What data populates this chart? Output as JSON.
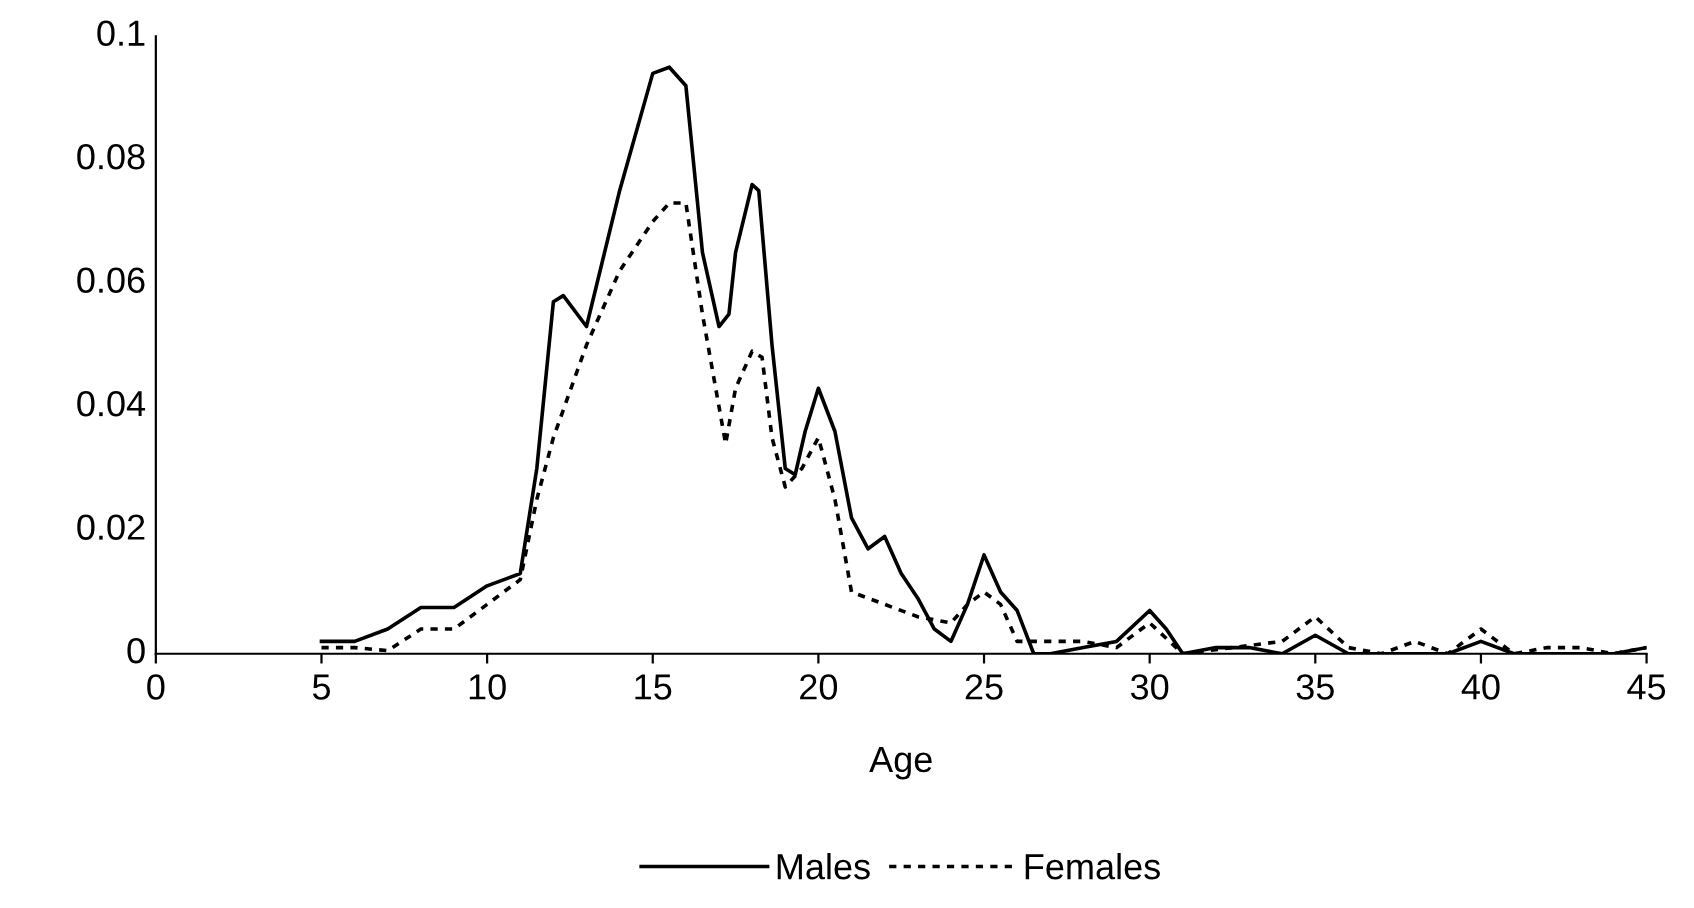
{
  "chart_data": {
    "type": "line",
    "xlabel": "Age",
    "xlim": [
      0,
      45
    ],
    "xticks": [
      0,
      5,
      10,
      15,
      20,
      25,
      30,
      35,
      40,
      45
    ],
    "ylim": [
      0,
      0.1
    ],
    "yticks": [
      0,
      0.02,
      0.04,
      0.06,
      0.08,
      0.1
    ],
    "grid": false,
    "legend": "bottom",
    "marker": "none",
    "series": [
      {
        "name": "Males",
        "color": "#000000",
        "line_style": "solid",
        "x": [
          5,
          6,
          7,
          8,
          9,
          10,
          11,
          11.5,
          12,
          12.3,
          13,
          14,
          15,
          15.5,
          16,
          16.5,
          17,
          17.3,
          17.5,
          18,
          18.2,
          18.6,
          19,
          19.3,
          19.6,
          20,
          20.5,
          21,
          21.5,
          22,
          22.5,
          23,
          23.5,
          24,
          24.5,
          25,
          25.5,
          26,
          26.5,
          27,
          28,
          29,
          30,
          30.5,
          31,
          32,
          33,
          34,
          35,
          36,
          39,
          40,
          41,
          44,
          45
        ],
        "values": [
          0.002,
          0.002,
          0.004,
          0.0075,
          0.0075,
          0.011,
          0.013,
          0.03,
          0.057,
          0.058,
          0.053,
          0.075,
          0.094,
          0.095,
          0.092,
          0.065,
          0.053,
          0.055,
          0.065,
          0.076,
          0.075,
          0.05,
          0.03,
          0.029,
          0.036,
          0.043,
          0.036,
          0.022,
          0.017,
          0.019,
          0.013,
          0.009,
          0.004,
          0.002,
          0.008,
          0.016,
          0.01,
          0.007,
          0,
          0,
          0.001,
          0.002,
          0.007,
          0.004,
          0,
          0.001,
          0.001,
          0,
          0.003,
          0,
          0,
          0.002,
          0,
          0,
          0.001
        ]
      },
      {
        "name": "Females",
        "color": "#000000",
        "line_style": "dotted",
        "x": [
          5,
          6,
          7,
          8,
          9,
          10,
          11,
          11.5,
          12,
          13,
          14,
          15,
          15.5,
          16,
          16.5,
          17,
          17.2,
          17.5,
          18,
          18.3,
          18.6,
          19,
          19.5,
          20,
          20.5,
          21,
          22,
          23,
          24,
          24.5,
          25,
          25.5,
          26,
          27,
          28,
          29,
          30,
          31,
          34,
          35,
          36,
          37,
          38,
          39,
          40,
          41,
          42,
          43,
          44,
          45
        ],
        "values": [
          0.001,
          0.001,
          0.0005,
          0.004,
          0.004,
          0.008,
          0.012,
          0.025,
          0.035,
          0.05,
          0.062,
          0.07,
          0.073,
          0.073,
          0.055,
          0.04,
          0.034,
          0.043,
          0.049,
          0.048,
          0.035,
          0.027,
          0.03,
          0.035,
          0.025,
          0.01,
          0.008,
          0.006,
          0.005,
          0.008,
          0.01,
          0.008,
          0.002,
          0.002,
          0.002,
          0.001,
          0.005,
          0,
          0.002,
          0.006,
          0.001,
          0,
          0.002,
          0,
          0.004,
          0,
          0.001,
          0.001,
          0,
          0.001
        ]
      }
    ]
  }
}
